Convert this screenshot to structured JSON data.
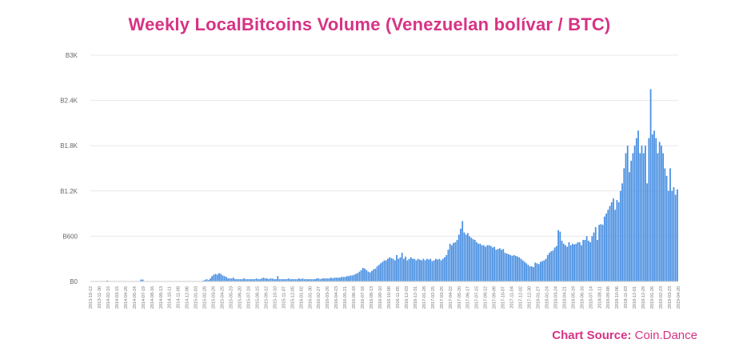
{
  "page": {
    "title": "Weekly LocalBitcoins Volume (Venezuelan bolívar / BTC)",
    "source_prefix": "Chart Source:",
    "source_name": "Coin.Dance"
  },
  "colors": {
    "title": "#d63384",
    "bar": "#4a90e2",
    "grid": "#e8e8e8"
  },
  "chart_data": {
    "type": "bar",
    "title": "Weekly LocalBitcoins Volume (Venezuelan bolívar / BTC)",
    "xlabel": "",
    "ylabel": "",
    "ylim": [
      0,
      3000
    ],
    "y_ticks": [
      0,
      600,
      1200,
      1800,
      2400,
      3000
    ],
    "y_tick_labels": [
      "B0",
      "B600",
      "B1.2K",
      "B1.8K",
      "B2.4K",
      "B3K"
    ],
    "grid": true,
    "x_tick_labels": [
      "2013-10-12",
      "2013-11-30",
      "2014-02-15",
      "2014-03-15",
      "2014-04-26",
      "2014-05-24",
      "2014-07-19",
      "2014-08-16",
      "2014-09-13",
      "2014-10-11",
      "2014-11-08",
      "2014-12-06",
      "2015-01-03",
      "2015-02-28",
      "2015-03-28",
      "2015-04-25",
      "2015-05-23",
      "2015-06-20",
      "2015-07-18",
      "2015-08-15",
      "2015-09-12",
      "2015-10-10",
      "2015-11-07",
      "2015-12-05",
      "2016-01-02",
      "2016-01-30",
      "2016-02-27",
      "2016-03-26",
      "2016-04-23",
      "2016-05-21",
      "2016-06-18",
      "2016-07-16",
      "2016-08-13",
      "2016-09-10",
      "2016-10-08",
      "2016-11-05",
      "2016-12-03",
      "2016-12-31",
      "2017-01-28",
      "2017-02-25",
      "2017-03-25",
      "2017-04-22",
      "2017-05-20",
      "2017-06-17",
      "2017-07-15",
      "2017-08-12",
      "2017-09-09",
      "2017-10-07",
      "2017-11-04",
      "2017-12-02",
      "2017-12-30",
      "2018-01-27",
      "2018-02-24",
      "2018-03-24",
      "2018-04-21",
      "2018-05-19",
      "2018-06-16",
      "2018-07-14",
      "2018-08-11",
      "2018-09-08",
      "2018-10-06",
      "2018-11-03",
      "2018-12-01",
      "2018-12-29",
      "2019-01-26",
      "2019-02-23",
      "2019-03-23",
      "2019-04-20"
    ],
    "series": [
      {
        "values": [
          0,
          0,
          5,
          0,
          0,
          0,
          0,
          0,
          0,
          12,
          0,
          0,
          0,
          0,
          0,
          0,
          0,
          0,
          0,
          0,
          0,
          0,
          0,
          3,
          0,
          0,
          0,
          0,
          25,
          25,
          0,
          0,
          0,
          0,
          0,
          0,
          0,
          0,
          0,
          0,
          0,
          0,
          5,
          0,
          0,
          0,
          0,
          0,
          0,
          0,
          0,
          0,
          0,
          0,
          0,
          0,
          0,
          0,
          0,
          0,
          5,
          5,
          5,
          10,
          20,
          30,
          20,
          40,
          70,
          90,
          100,
          90,
          110,
          100,
          80,
          70,
          60,
          40,
          40,
          40,
          50,
          30,
          30,
          30,
          30,
          30,
          40,
          30,
          30,
          30,
          30,
          30,
          30,
          40,
          30,
          30,
          40,
          50,
          40,
          40,
          30,
          40,
          40,
          30,
          30,
          70,
          30,
          30,
          30,
          30,
          30,
          40,
          30,
          30,
          30,
          30,
          30,
          40,
          30,
          40,
          30,
          30,
          30,
          30,
          30,
          30,
          30,
          40,
          40,
          30,
          40,
          40,
          40,
          40,
          40,
          50,
          40,
          50,
          50,
          50,
          50,
          60,
          60,
          60,
          70,
          70,
          80,
          80,
          90,
          100,
          110,
          130,
          150,
          180,
          170,
          150,
          130,
          120,
          140,
          160,
          170,
          200,
          220,
          240,
          260,
          280,
          280,
          300,
          320,
          310,
          300,
          280,
          350,
          300,
          320,
          380,
          300,
          330,
          280,
          300,
          320,
          300,
          300,
          280,
          300,
          290,
          280,
          300,
          280,
          300,
          290,
          300,
          270,
          280,
          300,
          290,
          300,
          280,
          300,
          320,
          350,
          420,
          500,
          480,
          510,
          520,
          550,
          620,
          700,
          800,
          650,
          620,
          640,
          600,
          580,
          560,
          550,
          520,
          500,
          500,
          480,
          480,
          460,
          480,
          480,
          470,
          450,
          460,
          420,
          430,
          440,
          420,
          430,
          380,
          370,
          360,
          350,
          340,
          350,
          340,
          330,
          320,
          300,
          280,
          260,
          240,
          220,
          200,
          200,
          190,
          250,
          240,
          230,
          260,
          270,
          280,
          300,
          350,
          380,
          400,
          410,
          450,
          470,
          680,
          660,
          540,
          500,
          480,
          460,
          520,
          480,
          500,
          490,
          500,
          520,
          520,
          480,
          550,
          550,
          600,
          540,
          520,
          600,
          650,
          720,
          550,
          750,
          760,
          750,
          860,
          900,
          950,
          1000,
          1050,
          1100,
          950,
          1080,
          1050,
          1200,
          1300,
          1500,
          1700,
          1800,
          1450,
          1600,
          1700,
          1800,
          1900,
          2000,
          1700,
          1800,
          1700,
          1800,
          1300,
          1900,
          2550,
          1950,
          2000,
          1900,
          1700,
          1850,
          1800,
          1700,
          1500,
          1400,
          1200,
          1500,
          1200,
          1250,
          1150,
          1220
        ]
      }
    ]
  }
}
